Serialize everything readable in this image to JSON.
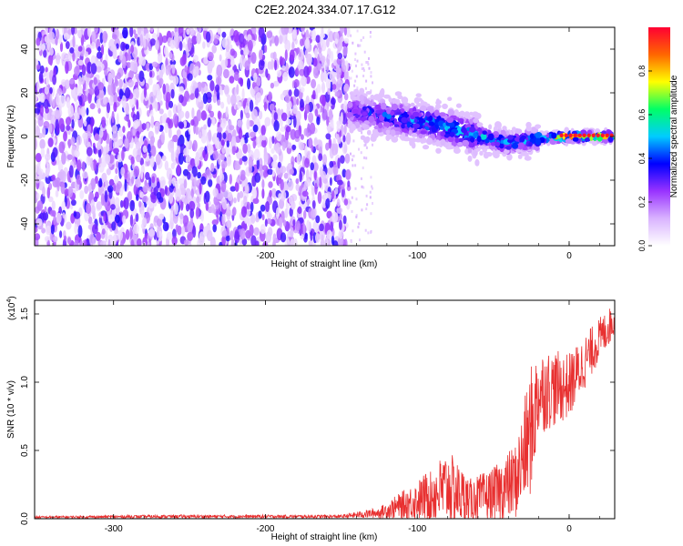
{
  "title": "C2E2.2024.334.07.17.G12",
  "chart_data": [
    {
      "type": "heatmap",
      "name": "spectrogram",
      "xlabel": "Height of straight line (km)",
      "ylabel": "Frequency (Hz)",
      "xlim": [
        -352,
        30
      ],
      "ylim": [
        -50,
        50
      ],
      "x_ticks": [
        -300,
        -200,
        -100,
        0
      ],
      "x_tick_labels": [
        "-300",
        "-200",
        "-100",
        "0"
      ],
      "y_ticks": [
        40,
        20,
        0,
        -20,
        -40
      ],
      "y_tick_labels": [
        "40",
        "20",
        "0",
        "-20",
        "-40"
      ],
      "colorbar": {
        "label": "Normalized spectral amplitude",
        "range": [
          0,
          1
        ],
        "ticks": [
          0.0,
          0.2,
          0.4,
          0.6,
          0.8
        ],
        "tick_labels": [
          "0.0",
          "0.2",
          "0.4",
          "0.6",
          "0.8"
        ],
        "colors": [
          "#ffffff",
          "#d9b3ff",
          "#9933ff",
          "#0000ff",
          "#00ccff",
          "#00ff66",
          "#ffff00",
          "#ff6600",
          "#ff0033"
        ]
      },
      "noise_region_x": [
        -352,
        -145
      ],
      "ridge": [
        {
          "x": -145,
          "y": 12,
          "amp": 0.35
        },
        {
          "x": -120,
          "y": 9,
          "amp": 0.45
        },
        {
          "x": -100,
          "y": 7,
          "amp": 0.5
        },
        {
          "x": -80,
          "y": 4,
          "amp": 0.5
        },
        {
          "x": -60,
          "y": 0,
          "amp": 0.55
        },
        {
          "x": -40,
          "y": -3,
          "amp": 0.5
        },
        {
          "x": -20,
          "y": -1,
          "amp": 0.6
        },
        {
          "x": 0,
          "y": 0,
          "amp": 0.95
        },
        {
          "x": 28,
          "y": 0,
          "amp": 0.9
        }
      ]
    },
    {
      "type": "line",
      "name": "snr",
      "xlabel": "Height of straight line (km)",
      "ylabel": "SNR (10 * v/v)",
      "y_multiplier_label": "(x10",
      "y_multiplier_exp": "4",
      "xlim": [
        -352,
        30
      ],
      "ylim": [
        0,
        1.6
      ],
      "x_ticks": [
        -300,
        -200,
        -100,
        0
      ],
      "x_tick_labels": [
        "-300",
        "-200",
        "-100",
        "0"
      ],
      "y_ticks": [
        0,
        0.5,
        1.0,
        1.5
      ],
      "y_tick_labels": [
        "0.0",
        "0.5",
        "1.0",
        "1.5"
      ],
      "color": "#e83030",
      "envelope": [
        {
          "x": -352,
          "base": 0.01,
          "amp": 0.01
        },
        {
          "x": -270,
          "base": 0.015,
          "amp": 0.015
        },
        {
          "x": -150,
          "base": 0.015,
          "amp": 0.015
        },
        {
          "x": -125,
          "base": 0.04,
          "amp": 0.05
        },
        {
          "x": -100,
          "base": 0.12,
          "amp": 0.18
        },
        {
          "x": -80,
          "base": 0.2,
          "amp": 0.35
        },
        {
          "x": -65,
          "base": 0.12,
          "amp": 0.2
        },
        {
          "x": -50,
          "base": 0.15,
          "amp": 0.25
        },
        {
          "x": -35,
          "base": 0.25,
          "amp": 0.35
        },
        {
          "x": -25,
          "base": 0.6,
          "amp": 0.6
        },
        {
          "x": -20,
          "base": 0.9,
          "amp": 0.4
        },
        {
          "x": 0,
          "base": 0.95,
          "amp": 0.3
        },
        {
          "x": 20,
          "base": 1.3,
          "amp": 0.2
        },
        {
          "x": 30,
          "base": 1.45,
          "amp": 0.15
        }
      ]
    }
  ]
}
